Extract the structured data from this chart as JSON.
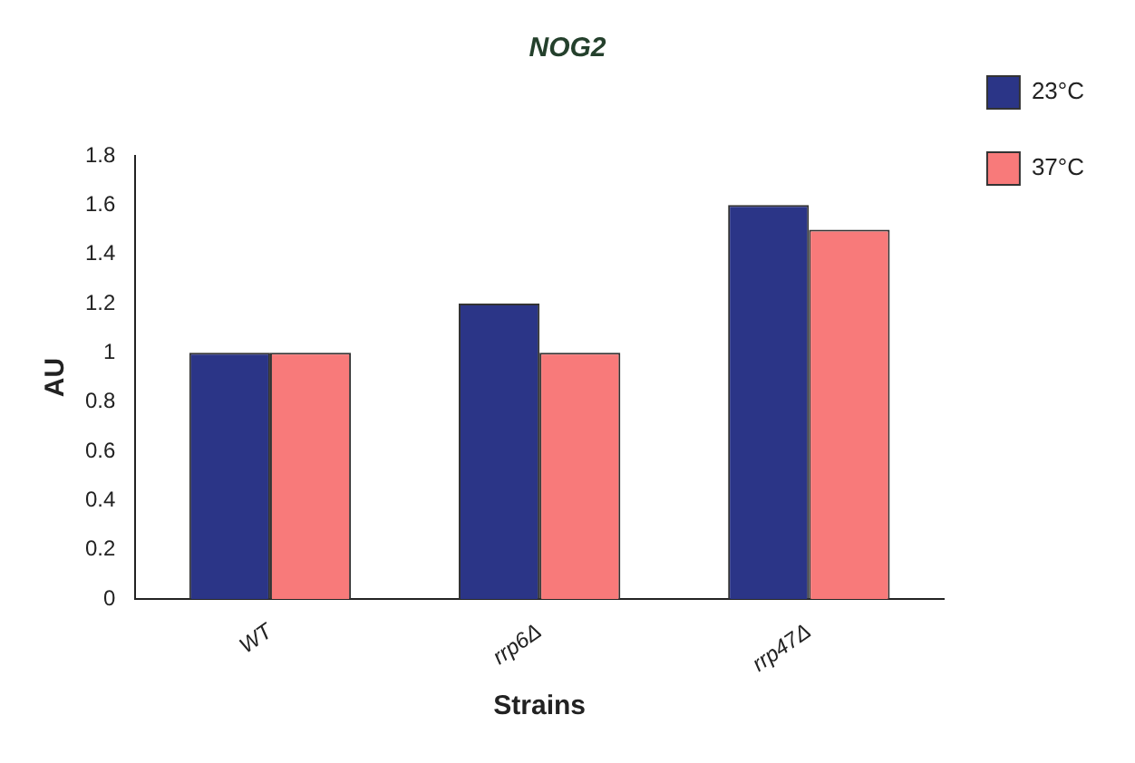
{
  "chart_data": {
    "type": "bar",
    "title": "NOG2",
    "xlabel": "Strains",
    "ylabel": "AU",
    "categories": [
      "WT",
      "rrp6Δ",
      "rrp47Δ"
    ],
    "series": [
      {
        "name": "23°C",
        "color": "#2b3587",
        "values": [
          1,
          1.2,
          1.6
        ]
      },
      {
        "name": "37°C",
        "color": "#f87a7a",
        "values": [
          1,
          1,
          1.5
        ]
      }
    ],
    "ylim": [
      0,
      1.8
    ],
    "yticks": [
      0,
      0.2,
      0.4,
      0.6,
      0.8,
      1,
      1.2,
      1.4,
      1.6,
      1.8
    ],
    "grid": false,
    "legend": "right"
  }
}
